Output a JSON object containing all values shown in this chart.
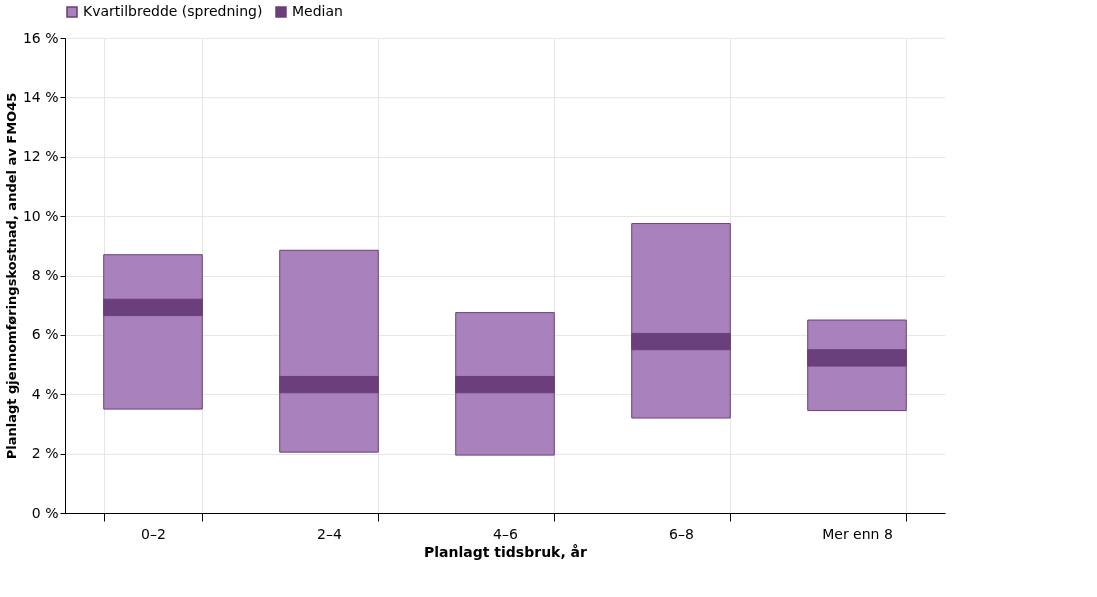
{
  "chart_data": {
    "type": "bar",
    "xlabel": "Planlagt tidsbruk, år",
    "ylabel": "Planlagt gjennomføringskostnad, andel av FMO45",
    "categories": [
      "0–2",
      "2–4",
      "4–6",
      "6–8",
      "Mer enn 8"
    ],
    "series": [
      {
        "name": "Kvartilbredde (spredning)",
        "color": "#a982bb",
        "base": [
          3.5,
          2.05,
          1.95,
          3.2,
          3.45
        ],
        "values": [
          5.2,
          6.8,
          4.8,
          6.55,
          3.05
        ]
      },
      {
        "name": "Median",
        "color": "#6b3f7a",
        "base": [
          6.65,
          4.05,
          4.05,
          5.5,
          4.95
        ],
        "values": [
          0.55,
          0.55,
          0.55,
          0.55,
          0.55
        ]
      }
    ],
    "ylim": [
      0,
      16
    ],
    "yticks": [
      {
        "value": 0,
        "label": "0 %"
      },
      {
        "value": 2,
        "label": "2 %"
      },
      {
        "value": 4,
        "label": "4 %"
      },
      {
        "value": 6,
        "label": "6 %"
      },
      {
        "value": 8,
        "label": "8 %"
      },
      {
        "value": 10,
        "label": "10 %"
      },
      {
        "value": 12,
        "label": "12 %"
      },
      {
        "value": 14,
        "label": "14 %"
      },
      {
        "value": 16,
        "label": "16 %"
      }
    ],
    "grid": true,
    "legend": "top"
  }
}
